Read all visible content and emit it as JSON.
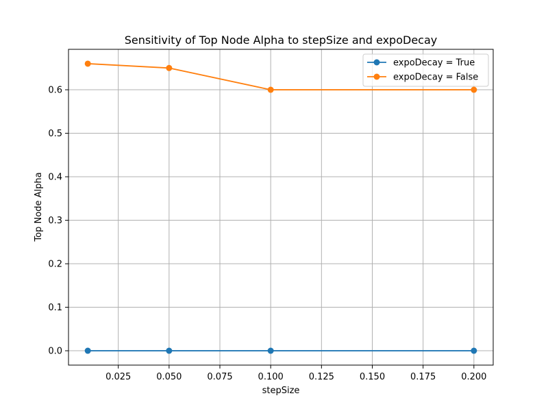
{
  "chart_data": {
    "type": "line",
    "title": "Sensitivity of Top Node Alpha to stepSize and expoDecay",
    "xlabel": "stepSize",
    "ylabel": "Top Node Alpha",
    "x": [
      0.01,
      0.05,
      0.1,
      0.2
    ],
    "series": [
      {
        "name": "expoDecay = True",
        "values": [
          0.0,
          0.0,
          0.0,
          0.0
        ],
        "color": "#1f77b4"
      },
      {
        "name": "expoDecay = False",
        "values": [
          0.66,
          0.65,
          0.6,
          0.6
        ],
        "color": "#ff7f0e"
      }
    ],
    "xlim": [
      0.0005,
      0.2095
    ],
    "ylim": [
      -0.033,
      0.693
    ],
    "xticks": [
      0.025,
      0.05,
      0.075,
      0.1,
      0.125,
      0.15,
      0.175,
      0.2
    ],
    "xtick_labels": [
      "0.025",
      "0.050",
      "0.075",
      "0.100",
      "0.125",
      "0.150",
      "0.175",
      "0.200"
    ],
    "yticks": [
      0.0,
      0.1,
      0.2,
      0.3,
      0.4,
      0.5,
      0.6
    ],
    "ytick_labels": [
      "0.0",
      "0.1",
      "0.2",
      "0.3",
      "0.4",
      "0.5",
      "0.6"
    ],
    "grid": true,
    "legend_position": "upper right"
  }
}
